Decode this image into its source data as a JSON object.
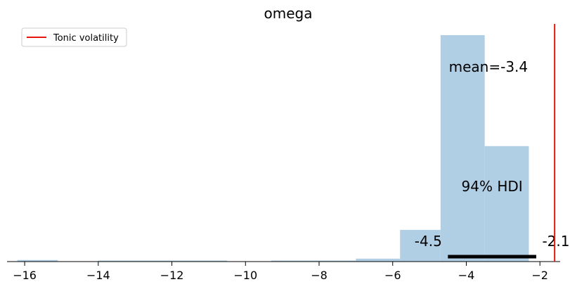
{
  "chart_data": {
    "type": "histogram",
    "title": "omega",
    "xlabel": "",
    "ylabel": "",
    "xlim": [
      -16.25,
      -1.45
    ],
    "x_ticks": [
      -16,
      -14,
      -12,
      -10,
      -8,
      -6,
      -4,
      -2
    ],
    "x_tick_labels": [
      "−16",
      "−14",
      "−12",
      "−10",
      "−8",
      "−6",
      "−4",
      "−2"
    ],
    "bins": [
      {
        "x0": -16.2,
        "x1": -15.1,
        "height": 0.007
      },
      {
        "x0": -15.1,
        "x1": -14.0,
        "height": 0.0
      },
      {
        "x0": -14.0,
        "x1": -12.8,
        "height": 0.003
      },
      {
        "x0": -12.8,
        "x1": -11.7,
        "height": 0.003
      },
      {
        "x0": -11.7,
        "x1": -10.5,
        "height": 0.003
      },
      {
        "x0": -10.5,
        "x1": -9.3,
        "height": 0.0
      },
      {
        "x0": -9.3,
        "x1": -8.1,
        "height": 0.003
      },
      {
        "x0": -8.1,
        "x1": -7.0,
        "height": 0.003
      },
      {
        "x0": -7.0,
        "x1": -5.8,
        "height": 0.013
      },
      {
        "x0": -5.8,
        "x1": -4.7,
        "height": 0.14
      },
      {
        "x0": -4.7,
        "x1": -3.5,
        "height": 1.0
      },
      {
        "x0": -3.5,
        "x1": -2.3,
        "height": 0.51
      }
    ],
    "bar_color": "#b0cfe4",
    "mean_label": "mean=-3.4",
    "hdi": {
      "label": "94% HDI",
      "low": -4.5,
      "high": -2.1,
      "low_label": "-4.5",
      "high_label": "-2.1"
    },
    "reference_line": {
      "value": -1.6,
      "label": "Tonic volatility",
      "color": "#e8170e"
    },
    "legend_position": "top-left",
    "grid": false
  }
}
